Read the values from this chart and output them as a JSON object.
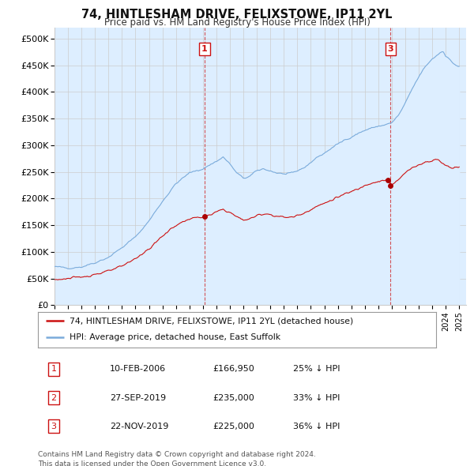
{
  "title": "74, HINTLESHAM DRIVE, FELIXSTOWE, IP11 2YL",
  "subtitle": "Price paid vs. HM Land Registry's House Price Index (HPI)",
  "yticks": [
    0,
    50000,
    100000,
    150000,
    200000,
    250000,
    300000,
    350000,
    400000,
    450000,
    500000
  ],
  "ytick_labels": [
    "£0",
    "£50K",
    "£100K",
    "£150K",
    "£200K",
    "£250K",
    "£300K",
    "£350K",
    "£400K",
    "£450K",
    "£500K"
  ],
  "hpi_color": "#7aabdb",
  "hpi_fill_color": "#ddeeff",
  "price_color": "#cc1111",
  "marker_color": "#aa0000",
  "background_color": "#ffffff",
  "grid_color": "#cccccc",
  "legend_entries": [
    "74, HINTLESHAM DRIVE, FELIXSTOWE, IP11 2YL (detached house)",
    "HPI: Average price, detached house, East Suffolk"
  ],
  "footer": "Contains HM Land Registry data © Crown copyright and database right 2024.\nThis data is licensed under the Open Government Licence v3.0.",
  "xmin": 1995.0,
  "xmax": 2025.5,
  "ymin": 0,
  "ymax": 520000,
  "vline_transactions": [
    {
      "num": 1,
      "year_x": 2006.12,
      "price": 166950
    },
    {
      "num": 3,
      "year_x": 2019.9,
      "price": 225000
    }
  ],
  "dot_transactions": [
    {
      "year_x": 2006.12,
      "price": 166950
    },
    {
      "year_x": 2019.74,
      "price": 235000
    },
    {
      "year_x": 2019.9,
      "price": 225000
    }
  ],
  "table_entries": [
    {
      "num": 1,
      "date": "10-FEB-2006",
      "price": "£166,950",
      "pct": "25% ↓ HPI"
    },
    {
      "num": 2,
      "date": "27-SEP-2019",
      "price": "£235,000",
      "pct": "33% ↓ HPI"
    },
    {
      "num": 3,
      "date": "22-NOV-2019",
      "price": "£225,000",
      "pct": "36% ↓ HPI"
    }
  ]
}
